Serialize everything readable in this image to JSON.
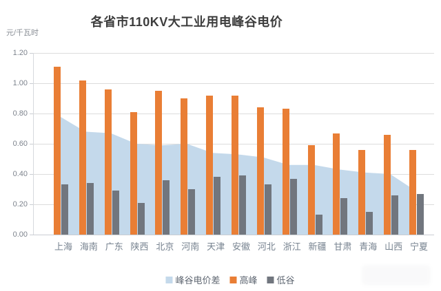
{
  "chart_data": {
    "type": "combo-area-bar",
    "title": "各省市110KV大工业用电峰谷电价",
    "unit_label": "元/千瓦时",
    "categories": [
      "上海",
      "海南",
      "广东",
      "陕西",
      "北京",
      "河南",
      "天津",
      "安徽",
      "河北",
      "浙江",
      "新疆",
      "甘肃",
      "青海",
      "山西",
      "宁夏"
    ],
    "series": [
      {
        "id": "diff",
        "name": "峰谷电价差",
        "type": "area",
        "values": [
          0.78,
          0.68,
          0.67,
          0.6,
          0.59,
          0.6,
          0.54,
          0.53,
          0.51,
          0.46,
          0.46,
          0.43,
          0.41,
          0.4,
          0.29
        ]
      },
      {
        "id": "peak",
        "name": "高峰",
        "type": "bar",
        "values": [
          1.11,
          1.02,
          0.96,
          0.81,
          0.95,
          0.9,
          0.92,
          0.92,
          0.84,
          0.83,
          0.59,
          0.67,
          0.56,
          0.66,
          0.56
        ]
      },
      {
        "id": "valley",
        "name": "低谷",
        "type": "bar",
        "values": [
          0.33,
          0.34,
          0.29,
          0.21,
          0.36,
          0.3,
          0.38,
          0.39,
          0.33,
          0.37,
          0.13,
          0.24,
          0.15,
          0.26,
          0.27
        ]
      }
    ],
    "ylim": [
      0.0,
      1.2
    ],
    "ytick_labels": [
      "0.00",
      "0.20",
      "0.40",
      "0.60",
      "0.80",
      "1.00",
      "1.20"
    ],
    "grid": true,
    "legend_position": "bottom"
  },
  "colors": {
    "diff": "#c4d9eb",
    "peak": "#e97e35",
    "valley": "#71767e",
    "grid": "#dcdcdc",
    "axis_text": "#7c828c",
    "category_text": "#76828f",
    "title_text": "#3d3d3d"
  }
}
